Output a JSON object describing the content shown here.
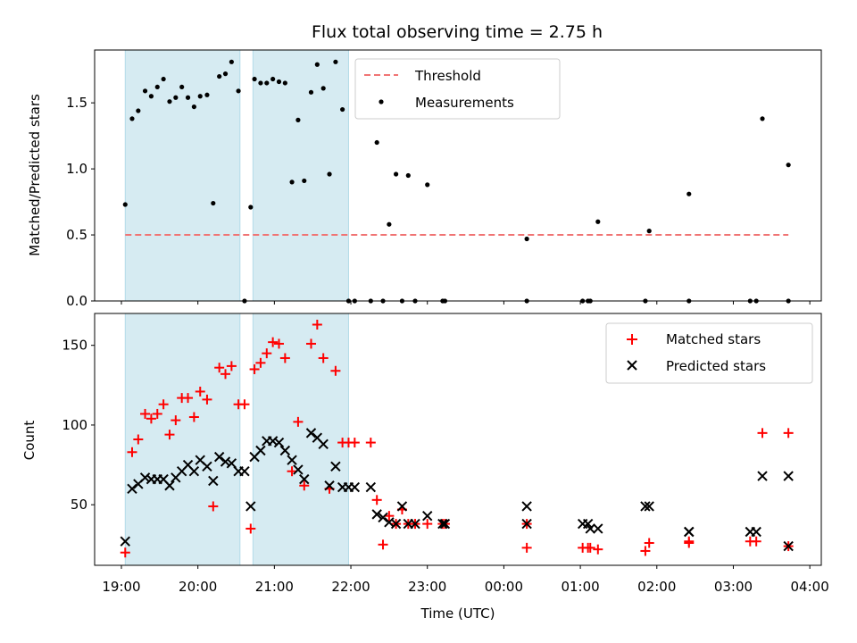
{
  "chart_data": [
    {
      "type": "scatter",
      "title": "Flux total observing time = 2.75 h",
      "ylabel": "Matched/Predicted stars",
      "ylim": [
        0,
        1.9
      ],
      "xlim": [
        -0.35,
        9.15
      ],
      "yticks": [
        {
          "v": 0.0,
          "label": "0.0"
        },
        {
          "v": 0.5,
          "label": "0.5"
        },
        {
          "v": 1.0,
          "label": "1.0"
        },
        {
          "v": 1.5,
          "label": "1.5"
        }
      ],
      "observing_windows_hours_after_19utc": [
        [
          0.05,
          1.55
        ],
        [
          1.72,
          2.97
        ]
      ],
      "threshold": {
        "name": "Threshold",
        "value": 0.5,
        "x_range": [
          0.05,
          8.72
        ],
        "color": "#f07474"
      },
      "measurements": {
        "name": "Measurements",
        "color": "#000000",
        "x": [
          0.05,
          0.14,
          0.22,
          0.31,
          0.39,
          0.47,
          0.55,
          0.63,
          0.71,
          0.79,
          0.87,
          0.95,
          1.03,
          1.12,
          1.2,
          1.28,
          1.36,
          1.44,
          1.53,
          1.61,
          1.69,
          1.74,
          1.82,
          1.9,
          1.98,
          2.06,
          2.14,
          2.23,
          2.31,
          2.39,
          2.48,
          2.56,
          2.64,
          2.72,
          2.8,
          2.89,
          2.97,
          3.05,
          3.26,
          3.34,
          3.42,
          3.5,
          3.59,
          3.67,
          3.75,
          3.84,
          4.0,
          4.2,
          4.23,
          5.3,
          5.3,
          6.03,
          6.1,
          6.13,
          6.23,
          6.85,
          6.9,
          7.42,
          7.42,
          8.22,
          8.3,
          8.38,
          8.72,
          8.72
        ],
        "y": [
          0.73,
          1.38,
          1.44,
          1.59,
          1.55,
          1.62,
          1.68,
          1.51,
          1.54,
          1.62,
          1.54,
          1.47,
          1.55,
          1.56,
          0.74,
          1.7,
          1.72,
          1.81,
          1.59,
          0.0,
          0.71,
          1.68,
          1.65,
          1.65,
          1.68,
          1.66,
          1.65,
          0.9,
          1.37,
          0.91,
          1.58,
          1.79,
          1.61,
          0.96,
          1.81,
          1.45,
          0.0,
          0.0,
          0.0,
          1.2,
          0.0,
          0.58,
          0.96,
          0.0,
          0.95,
          0.0,
          0.88,
          0.0,
          0.0,
          0.47,
          0.0,
          0.0,
          0.0,
          0.0,
          0.6,
          0.0,
          0.53,
          0.81,
          0.0,
          0.0,
          0.0,
          1.38,
          1.03,
          0.0
        ]
      },
      "legend": {
        "placement": "top-center",
        "entries": [
          "Threshold",
          "Measurements"
        ]
      }
    },
    {
      "type": "scatter",
      "title": "",
      "xlabel": "Time (UTC)",
      "ylabel": "Count",
      "ylim": [
        12,
        170
      ],
      "xlim": [
        -0.35,
        9.15
      ],
      "yticks": [
        {
          "v": 50,
          "label": "50"
        },
        {
          "v": 100,
          "label": "100"
        },
        {
          "v": 150,
          "label": "150"
        }
      ],
      "xticks": [
        {
          "v": 0,
          "label": "19:00"
        },
        {
          "v": 1,
          "label": "20:00"
        },
        {
          "v": 2,
          "label": "21:00"
        },
        {
          "v": 3,
          "label": "22:00"
        },
        {
          "v": 4,
          "label": "23:00"
        },
        {
          "v": 5,
          "label": "00:00"
        },
        {
          "v": 6,
          "label": "01:00"
        },
        {
          "v": 7,
          "label": "02:00"
        },
        {
          "v": 8,
          "label": "03:00"
        },
        {
          "v": 9,
          "label": "04:00"
        }
      ],
      "observing_windows_hours_after_19utc": [
        [
          0.05,
          1.55
        ],
        [
          1.72,
          2.97
        ]
      ],
      "series": [
        {
          "name": "Matched stars",
          "marker": "plus",
          "color": "#ff0000",
          "x": [
            0.05,
            0.14,
            0.22,
            0.31,
            0.39,
            0.47,
            0.55,
            0.63,
            0.71,
            0.79,
            0.87,
            0.95,
            1.03,
            1.12,
            1.2,
            1.28,
            1.36,
            1.44,
            1.53,
            1.61,
            1.69,
            1.74,
            1.82,
            1.9,
            1.98,
            2.06,
            2.14,
            2.23,
            2.31,
            2.39,
            2.48,
            2.56,
            2.64,
            2.72,
            2.8,
            2.89,
            2.97,
            3.05,
            3.26,
            3.34,
            3.42,
            3.5,
            3.59,
            3.67,
            3.75,
            3.84,
            4.0,
            4.2,
            4.23,
            5.3,
            5.3,
            6.03,
            6.1,
            6.13,
            6.23,
            6.85,
            6.9,
            7.42,
            7.42,
            8.22,
            8.3,
            8.38,
            8.72,
            8.72
          ],
          "y": [
            20,
            83,
            91,
            107,
            104,
            107,
            113,
            94,
            103,
            117,
            117,
            105,
            121,
            116,
            49,
            136,
            132,
            137,
            113,
            113,
            35,
            135,
            139,
            145,
            152,
            151,
            142,
            71,
            102,
            62,
            151,
            163,
            142,
            60,
            134,
            89,
            89,
            89,
            89,
            53,
            25,
            43,
            38,
            47,
            38,
            38,
            38,
            38,
            38,
            38,
            23,
            23,
            23,
            23,
            22,
            21,
            26,
            26,
            27,
            27,
            27,
            95,
            95,
            24
          ]
        },
        {
          "name": "Predicted stars",
          "marker": "x",
          "color": "#000000",
          "x": [
            0.05,
            0.14,
            0.22,
            0.31,
            0.39,
            0.47,
            0.55,
            0.63,
            0.71,
            0.79,
            0.87,
            0.95,
            1.03,
            1.12,
            1.2,
            1.28,
            1.36,
            1.44,
            1.53,
            1.61,
            1.69,
            1.74,
            1.82,
            1.9,
            1.98,
            2.06,
            2.14,
            2.23,
            2.31,
            2.39,
            2.48,
            2.56,
            2.64,
            2.72,
            2.8,
            2.89,
            2.97,
            3.05,
            3.26,
            3.34,
            3.42,
            3.5,
            3.59,
            3.67,
            3.75,
            3.84,
            4.0,
            4.2,
            4.23,
            5.3,
            5.3,
            6.03,
            6.1,
            6.13,
            6.23,
            6.85,
            6.9,
            7.42,
            7.42,
            8.22,
            8.3,
            8.38,
            8.72,
            8.72
          ],
          "y": [
            27,
            60,
            63,
            67,
            66,
            66,
            66,
            62,
            67,
            71,
            75,
            71,
            78,
            74,
            65,
            80,
            77,
            76,
            71,
            71,
            49,
            80,
            84,
            90,
            90,
            89,
            84,
            78,
            72,
            66,
            95,
            92,
            88,
            62,
            74,
            61,
            61,
            61,
            61,
            44,
            42,
            39,
            38,
            49,
            38,
            38,
            43,
            38,
            38,
            49,
            38,
            38,
            38,
            35,
            35,
            49,
            49,
            33,
            33,
            33,
            33,
            68,
            68,
            24
          ]
        }
      ],
      "legend": {
        "placement": "top-right",
        "entries": [
          "Matched stars",
          "Predicted stars"
        ]
      }
    }
  ]
}
